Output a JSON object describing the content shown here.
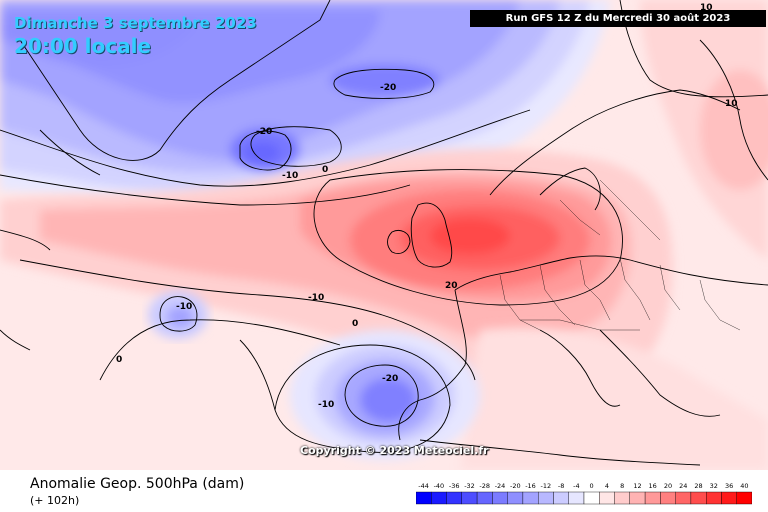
{
  "header": {
    "date": "Dimanche 3 septembre 2023",
    "time": "20:00 locale",
    "run": "Run GFS 12 Z du Mercredi 30 août 2023"
  },
  "watermark": "Copyright © 2023 Meteociel.fr",
  "footer": {
    "title": "Anomalie Geop. 500hPa (dam)",
    "subtitle": "(+ 102h)"
  },
  "contour_labels": [
    "-20",
    "-20",
    "-10",
    "0",
    "-10",
    "20",
    "10",
    "-10",
    "0",
    "0",
    "-20",
    "-10",
    "10"
  ],
  "legend": {
    "values": [
      "-44",
      "-40",
      "-36",
      "-32",
      "-28",
      "-24",
      "-20",
      "-16",
      "-12",
      "-8",
      "-4",
      "0",
      "4",
      "8",
      "12",
      "16",
      "20",
      "24",
      "28",
      "32",
      "36",
      "40"
    ],
    "colors": [
      "#0000ff",
      "#1a1aff",
      "#3333ff",
      "#4d4dff",
      "#6666ff",
      "#7b7bff",
      "#8f8fff",
      "#a3a3ff",
      "#b8b8ff",
      "#ccccff",
      "#e6e6ff",
      "#ffffff",
      "#ffe6e6",
      "#ffcccc",
      "#ffb3b3",
      "#ff9999",
      "#ff8080",
      "#ff6666",
      "#ff4d4d",
      "#ff3333",
      "#ff1a1a",
      "#ff0000"
    ]
  }
}
